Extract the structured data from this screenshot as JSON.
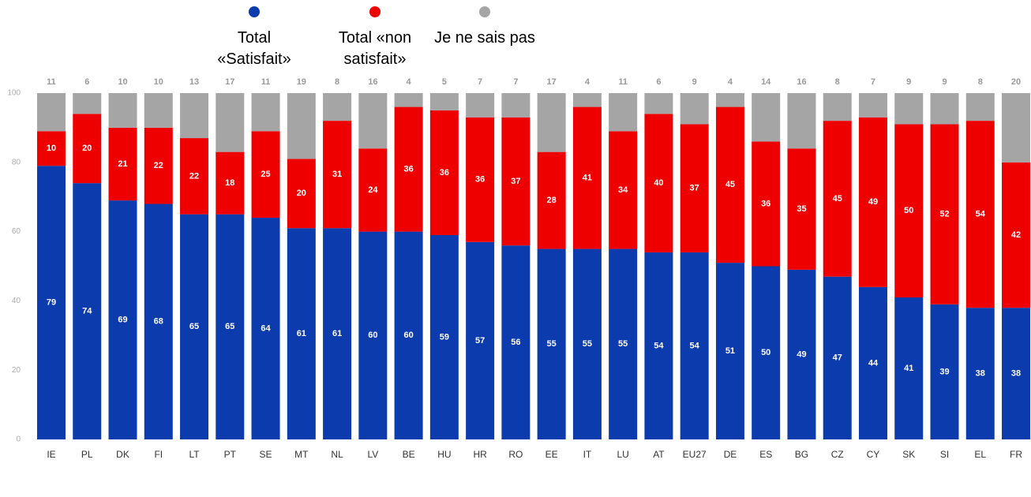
{
  "chart_data": {
    "type": "stacked_bar",
    "categories": [
      "IE",
      "PL",
      "DK",
      "FI",
      "LT",
      "PT",
      "SE",
      "MT",
      "NL",
      "LV",
      "BE",
      "HU",
      "HR",
      "RO",
      "EE",
      "IT",
      "LU",
      "AT",
      "EU27",
      "DE",
      "ES",
      "BG",
      "CZ",
      "CY",
      "SK",
      "SI",
      "EL",
      "FR"
    ],
    "series": [
      {
        "name": "Total «Satisfait»",
        "color": "#0b3bac",
        "values": [
          79,
          74,
          69,
          68,
          65,
          65,
          64,
          61,
          61,
          60,
          60,
          59,
          57,
          56,
          55,
          55,
          55,
          54,
          54,
          51,
          50,
          49,
          47,
          44,
          41,
          39,
          38,
          38
        ]
      },
      {
        "name": "Total «non satisfait»",
        "color": "#ee0000",
        "values": [
          10,
          20,
          21,
          22,
          22,
          18,
          25,
          20,
          31,
          24,
          36,
          36,
          36,
          37,
          28,
          41,
          34,
          40,
          37,
          45,
          36,
          35,
          45,
          49,
          50,
          52,
          54,
          42
        ]
      },
      {
        "name": "Je ne sais pas",
        "color": "#a5a5a5",
        "values": [
          11,
          6,
          10,
          10,
          13,
          17,
          11,
          19,
          8,
          16,
          4,
          5,
          7,
          7,
          17,
          4,
          11,
          6,
          9,
          4,
          14,
          16,
          8,
          7,
          9,
          9,
          8,
          20
        ]
      }
    ],
    "ylim": [
      0,
      100
    ],
    "yticks": [
      0,
      20,
      40,
      60,
      80,
      100
    ]
  }
}
